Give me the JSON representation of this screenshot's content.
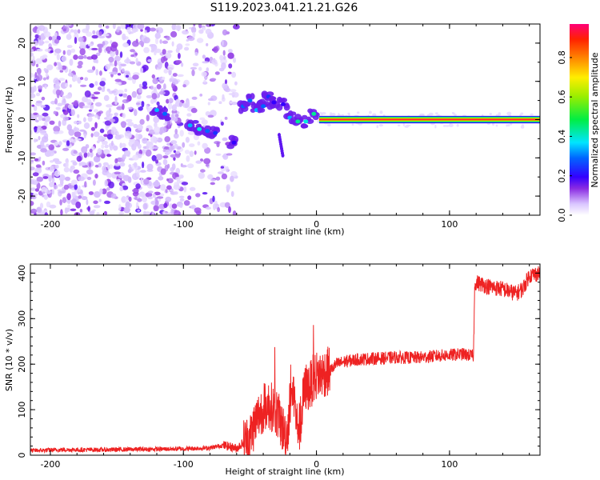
{
  "title": "S119.2023.041.21.21.G26",
  "chart_data": [
    {
      "type": "heatmap",
      "xlabel": "Height of straight line (km)",
      "ylabel": "Frequency (Hz)",
      "xlim": [
        -215,
        168
      ],
      "ylim": [
        -25,
        25
      ],
      "x_ticks": [
        "-200",
        "-100",
        "0",
        "100"
      ],
      "x_tick_values": [
        -200,
        -100,
        0,
        100
      ],
      "y_ticks": [
        "20",
        "10",
        "0",
        "-10",
        "-20"
      ],
      "y_tick_values": [
        20,
        10,
        0,
        -10,
        -20
      ],
      "colorbar": {
        "label": "Normalized spectral amplitude",
        "ticks": [
          "0.0",
          "0.2",
          "0.4",
          "0.6",
          "0.8"
        ],
        "tick_values": [
          0.0,
          0.2,
          0.4,
          0.6,
          0.8
        ],
        "range": [
          0,
          0.97
        ]
      },
      "features": {
        "noise_region_x": [
          -215,
          -70
        ],
        "signal_line": {
          "x": [
            2,
            168
          ],
          "y": 0
        },
        "blobs": [
          {
            "x": -120,
            "y": 2.5,
            "a": 0.35
          },
          {
            "x": -114,
            "y": 1.5,
            "a": 0.3
          },
          {
            "x": -95,
            "y": -1.5,
            "a": 0.35
          },
          {
            "x": -88,
            "y": -2.5,
            "a": 0.4
          },
          {
            "x": -82,
            "y": -3,
            "a": 0.3
          },
          {
            "x": -76,
            "y": -3.5,
            "a": 0.25
          },
          {
            "x": -62,
            "y": -6,
            "a": 0.2
          },
          {
            "x": -55,
            "y": 3.5,
            "a": 0.3
          },
          {
            "x": -50,
            "y": 5,
            "a": 0.3
          },
          {
            "x": -45,
            "y": 2.5,
            "a": 0.35
          },
          {
            "x": -40,
            "y": 3.5,
            "a": 0.3
          },
          {
            "x": -36,
            "y": 6,
            "a": 0.25
          },
          {
            "x": -32,
            "y": 4.5,
            "a": 0.2
          },
          {
            "x": -25,
            "y": 4,
            "a": 0.2
          },
          {
            "x": -20,
            "y": 0.5,
            "a": 0.35
          },
          {
            "x": -14,
            "y": -0.5,
            "a": 0.45
          },
          {
            "x": -8,
            "y": -0.5,
            "a": 0.4
          },
          {
            "x": -2,
            "y": 1.5,
            "a": 0.45
          }
        ]
      }
    },
    {
      "type": "line",
      "xlabel": "Height of straight line (km)",
      "ylabel": "SNR (10 * v/v)",
      "xlim": [
        -215,
        168
      ],
      "ylim": [
        0,
        420
      ],
      "x_ticks": [
        "-200",
        "-100",
        "0",
        "100"
      ],
      "x_tick_values": [
        -200,
        -100,
        0,
        100
      ],
      "y_ticks": [
        "0",
        "100",
        "200",
        "300",
        "400"
      ],
      "y_tick_values": [
        0,
        100,
        200,
        300,
        400
      ],
      "color": "#ee2222",
      "series": [
        {
          "x": [
            -215,
            -190,
            -160,
            -130,
            -100,
            -80,
            -70,
            -60,
            -50,
            -45,
            -40,
            -35,
            -30,
            -25,
            -22,
            -20,
            -17,
            -15,
            -12,
            -10,
            -8,
            -5,
            -3,
            0,
            5,
            10,
            15,
            20,
            30,
            40,
            50,
            60,
            70,
            80,
            90,
            100,
            110,
            118,
            119,
            125,
            130,
            140,
            150,
            155,
            160,
            168
          ],
          "y": [
            10,
            12,
            12,
            13,
            14,
            16,
            22,
            15,
            40,
            80,
            105,
            110,
            95,
            55,
            45,
            110,
            140,
            70,
            60,
            125,
            150,
            150,
            165,
            175,
            180,
            185,
            200,
            205,
            210,
            212,
            213,
            215,
            214,
            215,
            218,
            220,
            222,
            218,
            380,
            375,
            370,
            365,
            355,
            365,
            395,
            400
          ]
        }
      ]
    }
  ]
}
